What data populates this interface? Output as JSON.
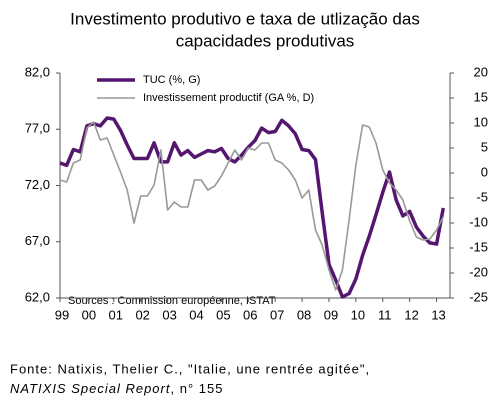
{
  "chart_data": {
    "type": "line",
    "title": [
      "Investimento produtivo e taxa de utlização das",
      "capacidades produtivas"
    ],
    "annotation": "Sources : Commission européenne, ISTAT",
    "x": [
      1999,
      1999.25,
      1999.5,
      1999.75,
      2000,
      2000.25,
      2000.5,
      2000.75,
      2001,
      2001.25,
      2001.5,
      2001.75,
      2002,
      2002.25,
      2002.5,
      2002.75,
      2003,
      2003.25,
      2003.5,
      2003.75,
      2004,
      2004.25,
      2004.5,
      2004.75,
      2005,
      2005.25,
      2005.5,
      2005.75,
      2006,
      2006.25,
      2006.5,
      2006.75,
      2007,
      2007.25,
      2007.5,
      2007.75,
      2008,
      2008.25,
      2008.5,
      2008.75,
      2009,
      2009.25,
      2009.5,
      2009.75,
      2010,
      2010.25,
      2010.5,
      2010.75,
      2011,
      2011.25,
      2011.5,
      2011.75,
      2012,
      2012.25,
      2012.5,
      2012.75,
      2013,
      2013.25
    ],
    "series": [
      {
        "name": "TUC (%, G)",
        "color": "#54166e",
        "width": 3.5,
        "axis": "y",
        "values": [
          74.0,
          73.8,
          75.2,
          75.0,
          77.3,
          77.5,
          77.3,
          78.0,
          77.9,
          76.9,
          75.6,
          74.4,
          74.4,
          74.4,
          75.8,
          74.1,
          74.1,
          75.8,
          74.7,
          75.1,
          74.5,
          74.8,
          75.1,
          75.0,
          75.3,
          74.4,
          74.1,
          74.7,
          75.4,
          76.0,
          77.1,
          76.7,
          76.8,
          77.8,
          77.3,
          76.6,
          75.2,
          75.1,
          74.3,
          69.6,
          65.0,
          63.6,
          62.1,
          62.4,
          63.7,
          65.8,
          67.5,
          69.4,
          71.4,
          73.2,
          70.7,
          69.3,
          69.7,
          68.3,
          67.5,
          66.9,
          66.8,
          70.0
        ]
      },
      {
        "name": "Investissement productif (GA %, D)",
        "color": "#999999",
        "width": 1.6,
        "axis": "y2",
        "values": [
          -1.4,
          -1.8,
          2,
          2.6,
          9,
          10.2,
          6.6,
          7,
          3.6,
          0.2,
          -3.4,
          -10,
          -4.6,
          -4.6,
          -2.4,
          4.6,
          -7.4,
          -5.8,
          -6.8,
          -6.8,
          -1.4,
          -1.4,
          -3.4,
          -2.6,
          -0.6,
          2,
          4.6,
          2.6,
          5,
          4.6,
          6,
          6,
          2.6,
          2,
          0.6,
          -1.4,
          -5,
          -3.4,
          -11.4,
          -14.4,
          -19.4,
          -23.4,
          -19.4,
          -9.4,
          1.6,
          9.6,
          9.2,
          6,
          0.6,
          -2,
          -3.4,
          -5.4,
          -9.6,
          -12.8,
          -13.4,
          -13.2,
          -11.4,
          -8.8
        ]
      }
    ],
    "xlim": [
      1999,
      2013.5
    ],
    "xticks": [
      {
        "value": 1999,
        "label": "99"
      },
      {
        "value": 2000,
        "label": "00"
      },
      {
        "value": 2001,
        "label": "01"
      },
      {
        "value": 2002,
        "label": "02"
      },
      {
        "value": 2003,
        "label": "03"
      },
      {
        "value": 2004,
        "label": "04"
      },
      {
        "value": 2005,
        "label": "05"
      },
      {
        "value": 2006,
        "label": "06"
      },
      {
        "value": 2007,
        "label": "07"
      },
      {
        "value": 2008,
        "label": "08"
      },
      {
        "value": 2009,
        "label": "09"
      },
      {
        "value": 2010,
        "label": "10"
      },
      {
        "value": 2011,
        "label": "11"
      },
      {
        "value": 2012,
        "label": "12"
      },
      {
        "value": 2013,
        "label": "13"
      }
    ],
    "ylim": [
      62,
      82
    ],
    "yticks": [
      {
        "value": 82,
        "label": "82,0"
      },
      {
        "value": 77,
        "label": "77,0"
      },
      {
        "value": 72,
        "label": "72,0"
      },
      {
        "value": 67,
        "label": "67,0"
      },
      {
        "value": 62,
        "label": "62,0"
      }
    ],
    "y2lim": [
      -25,
      20
    ],
    "y2ticks": [
      20,
      15,
      10,
      5,
      0,
      -5,
      -10,
      -15,
      -20,
      -25
    ],
    "legend": "top-left"
  },
  "caption": [
    "Fonte: Natixis, Thelier C., \"Italie, une rentrée agitée\",",
    "NATIXIS Special Report",
    ", n° 155"
  ]
}
